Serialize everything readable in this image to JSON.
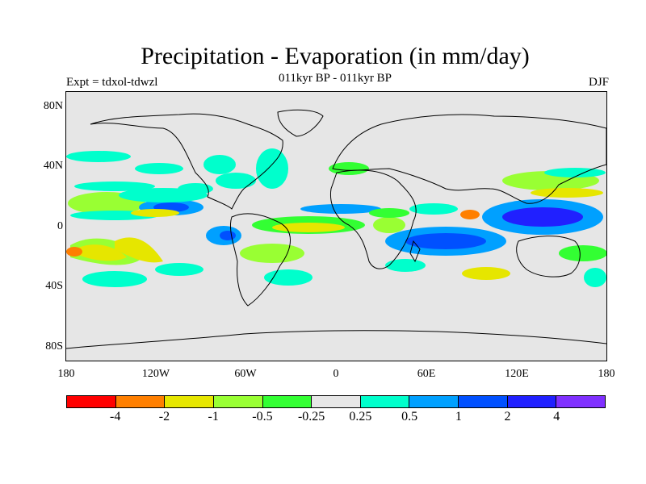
{
  "title": "Precipitation - Evaporation (in mm/day)",
  "subtitle": "011kyr BP - 011kyr BP",
  "experiment": "Expt = tdxol-tdwzl",
  "season": "DJF",
  "map": {
    "lat_ticks": [
      "80N",
      "40N",
      "0",
      "40S",
      "80S"
    ],
    "lon_ticks": [
      "180",
      "120W",
      "60W",
      "0",
      "60E",
      "120E",
      "180"
    ],
    "background_color": "#e6e6e6"
  },
  "colorbar": {
    "colors": [
      "#ff0000",
      "#ff7f00",
      "#e6e600",
      "#99ff33",
      "#33ff33",
      "#e6e6e6",
      "#00ffcc",
      "#00a0ff",
      "#0050ff",
      "#2020ff",
      "#8030ff"
    ],
    "labels": [
      "-4",
      "-2",
      "-1",
      "-0.5",
      "-0.25",
      "0.25",
      "0.5",
      "1",
      "2",
      "4"
    ]
  }
}
